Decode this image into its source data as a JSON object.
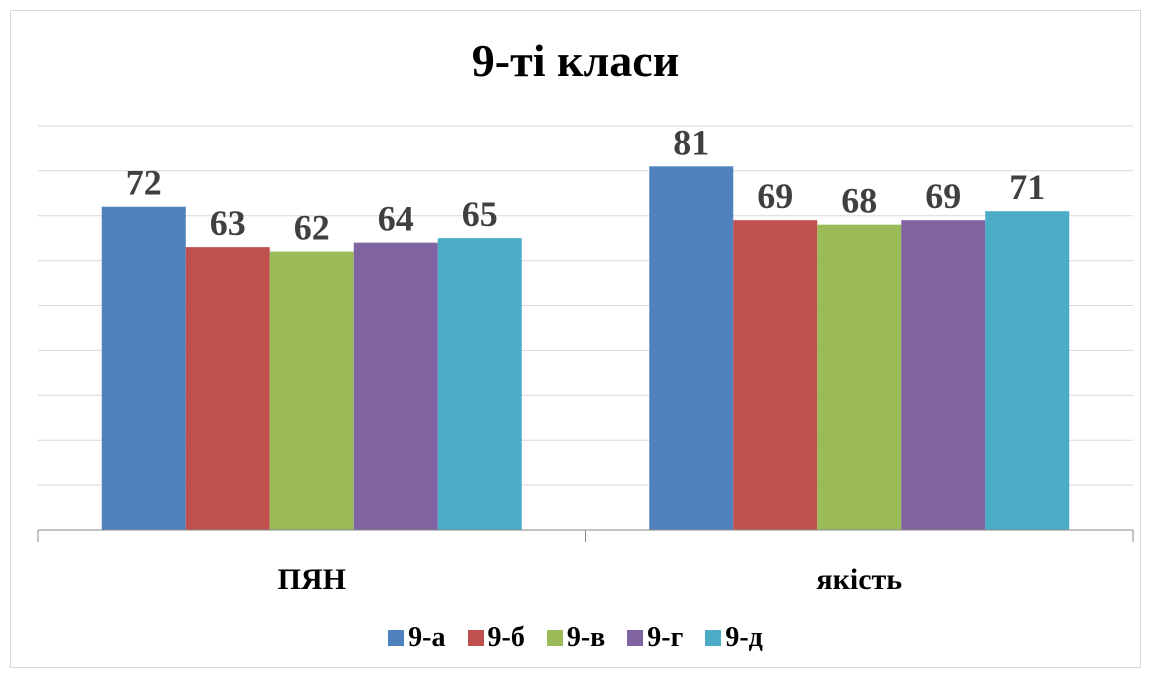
{
  "chart_data": {
    "type": "bar",
    "title": "9-ті класи",
    "categories": [
      "ПЯН",
      "якість"
    ],
    "series": [
      {
        "name": "9-а",
        "color": "#4f81bd",
        "values": [
          72,
          81
        ]
      },
      {
        "name": "9-б",
        "color": "#c0504d",
        "values": [
          63,
          69
        ]
      },
      {
        "name": "9-в",
        "color": "#9bbb59",
        "values": [
          62,
          68
        ]
      },
      {
        "name": "9-г",
        "color": "#8064a2",
        "values": [
          64,
          69
        ]
      },
      {
        "name": "9-д",
        "color": "#4bacc6",
        "values": [
          65,
          71
        ]
      }
    ],
    "ylim": [
      0,
      90
    ],
    "gridlines": true,
    "data_labels": true,
    "legend_position": "bottom",
    "xlabel": "",
    "ylabel": ""
  }
}
